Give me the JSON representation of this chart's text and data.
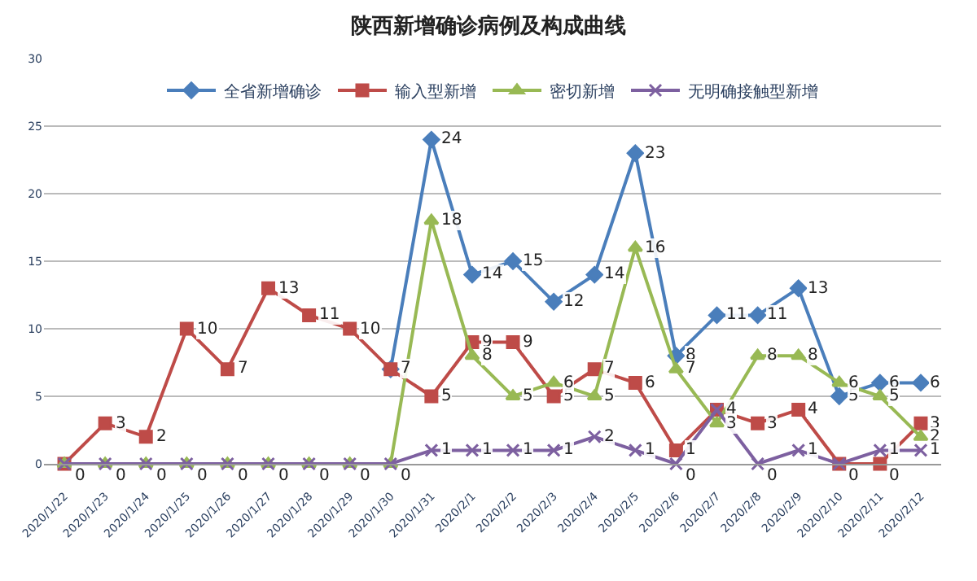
{
  "chart_data": {
    "type": "line",
    "title": "陕西新增确诊病例及构成曲线",
    "categories": [
      "2020/1/22",
      "2020/1/23",
      "2020/1/24",
      "2020/1/25",
      "2020/1/26",
      "2020/1/27",
      "2020/1/28",
      "2020/1/29",
      "2020/1/30",
      "2020/1/31",
      "2020/2/1",
      "2020/2/2",
      "2020/2/3",
      "2020/2/4",
      "2020/2/5",
      "2020/2/6",
      "2020/2/7",
      "2020/2/8",
      "2020/2/9",
      "2020/2/10",
      "2020/2/11",
      "2020/2/12"
    ],
    "series": [
      {
        "name": "全省新增确诊",
        "color": "#4a7ebb",
        "marker": "diamond",
        "values": [
          null,
          null,
          null,
          null,
          null,
          null,
          null,
          null,
          7,
          24,
          14,
          15,
          12,
          14,
          23,
          8,
          11,
          11,
          13,
          5,
          6,
          6
        ],
        "value_labels": [
          null,
          null,
          null,
          null,
          null,
          null,
          null,
          null,
          "7",
          "24",
          "14",
          "15",
          "12",
          "14",
          "23",
          "8",
          "11",
          "11",
          "13",
          "5",
          "6",
          "6"
        ]
      },
      {
        "name": "输入型新增",
        "color": "#be4b48",
        "marker": "square",
        "values": [
          0,
          3,
          2,
          10,
          7,
          13,
          11,
          10,
          7,
          5,
          9,
          9,
          5,
          7,
          6,
          1,
          4,
          3,
          4,
          0,
          0,
          3
        ],
        "value_labels": [
          null,
          "3",
          "2",
          "10",
          "7",
          "13",
          "11",
          "10",
          null,
          "5",
          "9",
          "9",
          "5",
          "7",
          "6",
          "1",
          "4",
          "3",
          "4",
          "0",
          "0",
          "3"
        ]
      },
      {
        "name": "密切新增",
        "color": "#98b954",
        "marker": "triangle",
        "values": [
          0,
          0,
          0,
          0,
          0,
          0,
          0,
          0,
          0,
          18,
          8,
          5,
          6,
          5,
          16,
          7,
          3,
          8,
          8,
          6,
          5,
          2
        ],
        "value_labels": [
          "0",
          "0",
          "0",
          "0",
          "0",
          "0",
          "0",
          "0",
          "0",
          "18",
          "8",
          "5",
          "6",
          "5",
          "16",
          "7",
          "3",
          "8",
          "8",
          "6",
          "5",
          "2"
        ]
      },
      {
        "name": "无明确接触型新增",
        "color": "#7d60a0",
        "marker": "cross",
        "values": [
          0,
          0,
          0,
          0,
          0,
          0,
          0,
          0,
          0,
          1,
          1,
          1,
          1,
          2,
          1,
          0,
          4,
          0,
          1,
          0,
          1,
          1
        ],
        "value_labels": [
          null,
          null,
          null,
          null,
          null,
          null,
          null,
          null,
          null,
          "1",
          "1",
          "1",
          "1",
          "2",
          "1",
          "0",
          null,
          "0",
          "1",
          null,
          "1",
          "1"
        ]
      }
    ],
    "ylim": [
      0,
      30
    ],
    "yticks": [
      0,
      5,
      10,
      15,
      20,
      25,
      30
    ],
    "grid": "y",
    "legend": "top",
    "line_style": "solid"
  }
}
